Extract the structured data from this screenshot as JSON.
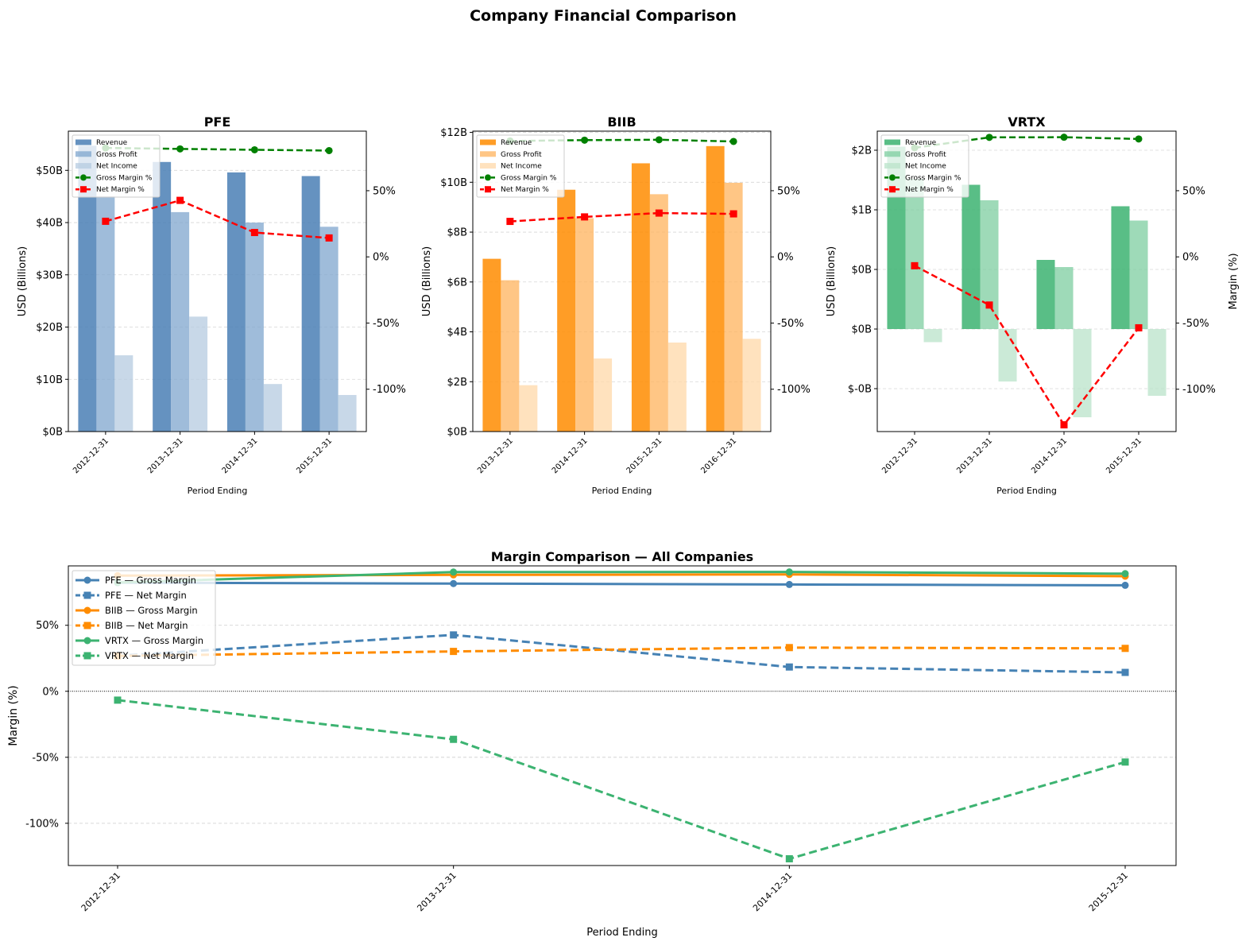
{
  "chart_data": {
    "suptitle": "Company Financial Comparison",
    "subplots": [
      {
        "type": "bar+line",
        "title": "PFE",
        "xlabel": "Period Ending",
        "ylabel": "USD (Billions)",
        "y2label": "",
        "categories": [
          "2012-12-31",
          "2013-12-31",
          "2014-12-31",
          "2015-12-31"
        ],
        "ylim": [
          0,
          57.5
        ],
        "yticks": [
          0,
          10,
          20,
          30,
          40,
          50
        ],
        "ytick_labels": [
          "$0B",
          "$10B",
          "$20B",
          "$30B",
          "$40B",
          "$50B"
        ],
        "y2lim": [
          -132,
          95
        ],
        "y2ticks": [
          -100,
          -50,
          0,
          50
        ],
        "y2tick_labels": [
          "-100%",
          "-50%",
          "0%",
          "50%"
        ],
        "colors": {
          "revenue": "#4a7fb5",
          "gross": "#7fa6cd",
          "net": "#b6cbe0",
          "bar_alpha": [
            0.85,
            0.75,
            0.75
          ]
        },
        "bar_series": [
          {
            "name": "Revenue",
            "values": [
              54.7,
              51.6,
              49.6,
              48.9
            ]
          },
          {
            "name": "Gross Profit",
            "values": [
              45.0,
              42.0,
              40.0,
              39.2
            ]
          },
          {
            "name": "Net Income",
            "values": [
              14.6,
              22.0,
              9.1,
              7.0
            ]
          }
        ],
        "line_series": [
          {
            "name": "Gross Margin %",
            "values": [
              82.3,
              81.6,
              80.9,
              80.3
            ]
          },
          {
            "name": "Net Margin %",
            "values": [
              26.9,
              42.7,
              18.4,
              14.3
            ]
          }
        ],
        "legend": [
          "Revenue",
          "Gross Profit",
          "Net Income",
          "Gross Margin %",
          "Net Margin %"
        ],
        "legend_loc": "upper-left"
      },
      {
        "type": "bar+line",
        "title": "BIIB",
        "xlabel": "Period Ending",
        "ylabel": "USD (Billions)",
        "y2label": "",
        "categories": [
          "2013-12-31",
          "2014-12-31",
          "2015-12-31",
          "2016-12-31"
        ],
        "ylim": [
          0,
          12.05
        ],
        "yticks": [
          0,
          2,
          4,
          6,
          8,
          10,
          12
        ],
        "ytick_labels": [
          "$0B",
          "$2B",
          "$4B",
          "$6B",
          "$8B",
          "$10B",
          "$12B"
        ],
        "y2lim": [
          -132,
          95
        ],
        "y2ticks": [
          -100,
          -50,
          0,
          50
        ],
        "y2tick_labels": [
          "-100%",
          "-50%",
          "0%",
          "50%"
        ],
        "colors": {
          "revenue": "#ff8c00",
          "gross": "#ffb35c",
          "net": "#ffd8a8"
        },
        "bar_series": [
          {
            "name": "Revenue",
            "values": [
              6.93,
              9.7,
              10.76,
              11.45
            ]
          },
          {
            "name": "Gross Profit",
            "values": [
              6.07,
              8.56,
              9.52,
              9.98
            ]
          },
          {
            "name": "Net Income",
            "values": [
              1.86,
              2.93,
              3.57,
              3.72
            ]
          }
        ],
        "line_series": [
          {
            "name": "Gross Margin %",
            "values": [
              87.6,
              88.2,
              88.5,
              87.2
            ]
          },
          {
            "name": "Net Margin %",
            "values": [
              26.8,
              30.2,
              33.1,
              32.5
            ]
          }
        ],
        "legend": [
          "Revenue",
          "Gross Profit",
          "Net Income",
          "Gross Margin %",
          "Net Margin %"
        ],
        "legend_loc": "upper-left"
      },
      {
        "type": "bar+line",
        "title": "VRTX",
        "xlabel": "Period Ending",
        "ylabel": "USD (Billions)",
        "y2label": "Margin (%)",
        "categories": [
          "2012-12-31",
          "2013-12-31",
          "2014-12-31",
          "2015-12-31"
        ],
        "ylim": [
          -0.86,
          1.66
        ],
        "yticks": [
          -0.5,
          0,
          0.5,
          1.0,
          1.5
        ],
        "ytick_labels": [
          "$-0B",
          "$0B",
          "$0B",
          "$1B",
          "$2B"
        ],
        "y2lim": [
          -132,
          95
        ],
        "y2ticks": [
          -100,
          -50,
          0,
          50
        ],
        "y2tick_labels": [
          "-100%",
          "-50%",
          "0%",
          "50%"
        ],
        "colors": {
          "revenue": "#3cb371",
          "gross": "#7dcea0",
          "net": "#b9e3c9"
        },
        "bar_series": [
          {
            "name": "Revenue",
            "values": [
              1.53,
              1.21,
              0.58,
              1.03
            ]
          },
          {
            "name": "Gross Profit",
            "values": [
              1.26,
              1.08,
              0.52,
              0.91
            ]
          },
          {
            "name": "Net Income",
            "values": [
              -0.11,
              -0.44,
              -0.74,
              -0.56
            ]
          }
        ],
        "line_series": [
          {
            "name": "Gross Margin %",
            "values": [
              82.4,
              90.3,
              90.4,
              89.1
            ]
          },
          {
            "name": "Net Margin %",
            "values": [
              -6.7,
              -36.4,
              -126.9,
              -53.6
            ]
          }
        ],
        "legend": [
          "Revenue",
          "Gross Profit",
          "Net Income",
          "Gross Margin %",
          "Net Margin %"
        ],
        "legend_loc": "upper-left"
      },
      {
        "type": "line",
        "title": "Margin Comparison — All Companies",
        "xlabel": "Period Ending",
        "ylabel": "Margin (%)",
        "categories": [
          "2012-12-31",
          "2013-12-31",
          "2014-12-31",
          "2015-12-31"
        ],
        "ylim": [
          -132,
          95
        ],
        "yticks": [
          -100,
          -50,
          0,
          50
        ],
        "ytick_labels": [
          "-100%",
          "-50%",
          "0%",
          "50%"
        ],
        "grid": true,
        "zero_line": true,
        "series": [
          {
            "name": "PFE — Gross Margin",
            "color": "#4682b4",
            "style": "solid",
            "marker": "circle",
            "values": [
              82.3,
              81.6,
              80.9,
              80.3
            ]
          },
          {
            "name": "PFE — Net Margin",
            "color": "#4682b4",
            "style": "dashed",
            "marker": "square",
            "values": [
              26.9,
              42.7,
              18.4,
              14.3
            ]
          },
          {
            "name": "BIIB — Gross Margin",
            "color": "#ff8c00",
            "style": "solid",
            "marker": "circle",
            "values": [
              87.6,
              88.2,
              88.5,
              87.2
            ]
          },
          {
            "name": "BIIB — Net Margin",
            "color": "#ff8c00",
            "style": "dashed",
            "marker": "square",
            "values": [
              26.8,
              30.2,
              33.1,
              32.5
            ]
          },
          {
            "name": "VRTX — Gross Margin",
            "color": "#3cb371",
            "style": "solid",
            "marker": "circle",
            "values": [
              82.4,
              90.3,
              90.4,
              89.1
            ]
          },
          {
            "name": "VRTX — Net Margin",
            "color": "#3cb371",
            "style": "dashed",
            "marker": "square",
            "values": [
              -6.7,
              -36.4,
              -126.9,
              -53.6
            ]
          }
        ],
        "legend_loc": "upper-left"
      }
    ]
  }
}
